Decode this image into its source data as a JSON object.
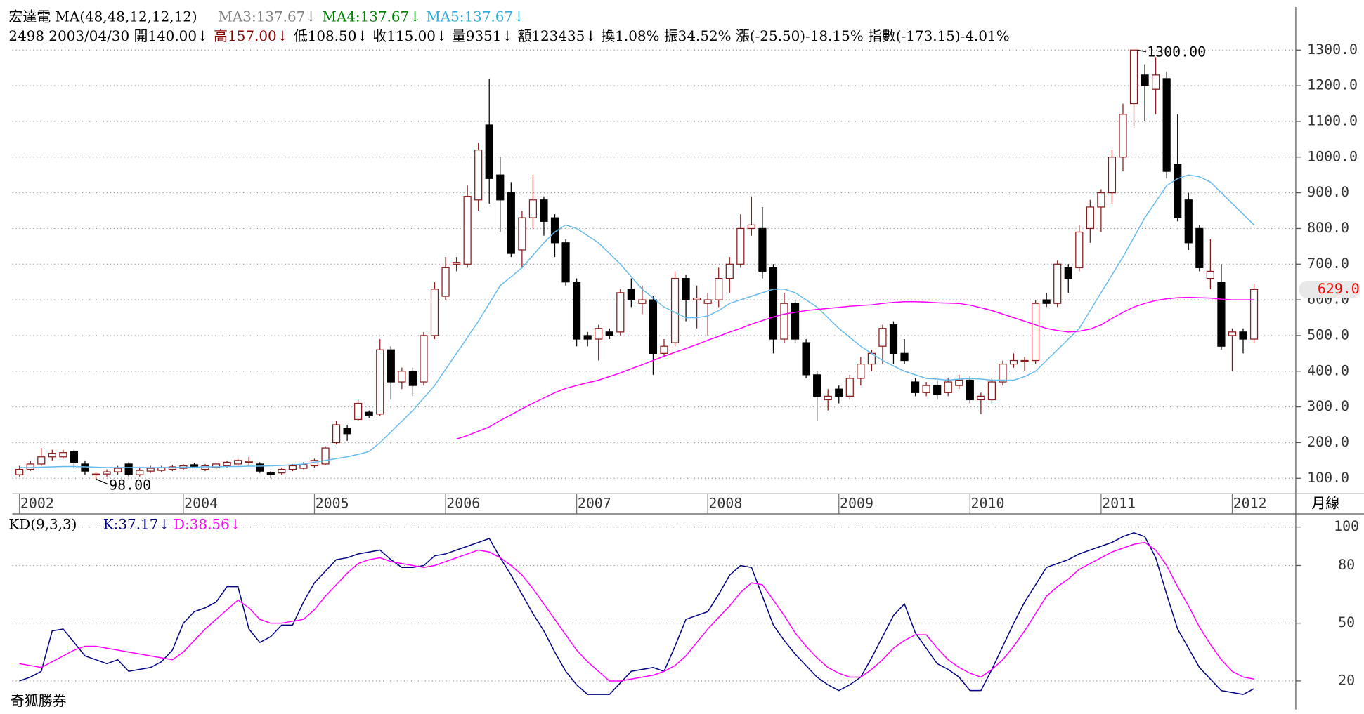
{
  "header": {
    "line1": [
      {
        "text": "宏達電 MA(48,48,12,12,12)",
        "color": "#000000"
      },
      {
        "text": "MA3:137.67↓",
        "color": "#808080"
      },
      {
        "text": "MA4:137.67↓",
        "color": "#008000"
      },
      {
        "text": "MA5:137.67↓",
        "color": "#33aadd"
      }
    ],
    "line2": [
      {
        "text": "2498 2003/04/30 開140.00↓",
        "color": "#000000"
      },
      {
        "text": "高157.00↓",
        "color": "#8b0000"
      },
      {
        "text": "低108.50↓ 收115.00↓ 量9351↓ 額123435↓ 換1.08% 振34.52% 漲(-25.50)-18.15% 指數(-173.15)-4.01%",
        "color": "#000000"
      }
    ]
  },
  "chart_data": [
    {
      "type": "candlestick",
      "up_color": "#8b1a1a",
      "down_color": "#000000",
      "grid": true,
      "open": [
        110,
        125,
        140,
        160,
        160,
        175,
        140,
        110,
        112,
        118,
        140,
        110,
        120,
        122,
        125,
        128,
        138,
        125,
        130,
        135,
        140,
        145,
        140,
        115,
        115,
        125,
        128,
        135,
        140,
        200,
        240,
        265,
        285,
        280,
        460,
        370,
        400,
        370,
        500,
        610,
        700,
        700,
        880,
        1090,
        950,
        900,
        740,
        830,
        880,
        830,
        760,
        650,
        500,
        490,
        510,
        510,
        630,
        590,
        600,
        450,
        480,
        660,
        600,
        590,
        600,
        660,
        700,
        800,
        800,
        690,
        490,
        590,
        480,
        390,
        320,
        350,
        330,
        380,
        420,
        470,
        530,
        450,
        370,
        340,
        360,
        340,
        360,
        375,
        320,
        320,
        370,
        420,
        430,
        430,
        600,
        590,
        690,
        690,
        800,
        860,
        900,
        1000,
        1150,
        1230,
        1190,
        1220,
        980,
        880,
        800,
        660,
        650,
        500,
        510,
        490
      ],
      "high": [
        135,
        150,
        185,
        180,
        180,
        180,
        150,
        118,
        125,
        135,
        145,
        130,
        135,
        135,
        138,
        140,
        142,
        140,
        145,
        150,
        155,
        160,
        145,
        120,
        130,
        140,
        145,
        155,
        190,
        260,
        250,
        320,
        290,
        490,
        470,
        410,
        410,
        510,
        650,
        720,
        720,
        920,
        1040,
        1220,
        1000,
        930,
        850,
        950,
        890,
        840,
        770,
        660,
        510,
        530,
        520,
        630,
        660,
        640,
        610,
        490,
        680,
        670,
        640,
        620,
        690,
        720,
        840,
        890,
        860,
        700,
        620,
        600,
        490,
        400,
        350,
        360,
        390,
        440,
        460,
        530,
        540,
        490,
        380,
        370,
        375,
        380,
        390,
        385,
        340,
        380,
        430,
        450,
        440,
        600,
        620,
        710,
        700,
        810,
        880,
        910,
        1020,
        1150,
        1300,
        1260,
        1280,
        1240,
        1120,
        900,
        810,
        770,
        700,
        520,
        520,
        645
      ],
      "low": [
        105,
        120,
        135,
        150,
        155,
        130,
        110,
        98,
        105,
        110,
        105,
        105,
        115,
        118,
        120,
        122,
        128,
        120,
        125,
        130,
        135,
        135,
        115,
        100,
        110,
        120,
        125,
        130,
        138,
        195,
        205,
        260,
        270,
        275,
        320,
        350,
        330,
        360,
        490,
        600,
        680,
        690,
        850,
        870,
        790,
        720,
        690,
        800,
        780,
        720,
        640,
        470,
        470,
        430,
        490,
        500,
        580,
        560,
        390,
        440,
        470,
        540,
        520,
        500,
        580,
        620,
        690,
        780,
        660,
        450,
        480,
        480,
        380,
        260,
        290,
        310,
        320,
        360,
        400,
        420,
        420,
        420,
        330,
        330,
        320,
        330,
        350,
        310,
        280,
        310,
        360,
        410,
        400,
        420,
        580,
        580,
        620,
        680,
        760,
        790,
        870,
        960,
        1080,
        1100,
        1120,
        940,
        820,
        740,
        680,
        630,
        460,
        400,
        450,
        480
      ],
      "close": [
        125,
        140,
        160,
        170,
        172,
        145,
        120,
        112,
        118,
        128,
        110,
        122,
        128,
        130,
        132,
        135,
        132,
        135,
        140,
        145,
        150,
        148,
        120,
        110,
        125,
        135,
        138,
        150,
        185,
        250,
        225,
        310,
        275,
        460,
        370,
        400,
        360,
        500,
        630,
        690,
        705,
        890,
        1020,
        940,
        880,
        730,
        830,
        880,
        820,
        760,
        650,
        490,
        490,
        520,
        500,
        620,
        600,
        600,
        450,
        470,
        660,
        600,
        605,
        600,
        660,
        700,
        800,
        810,
        680,
        490,
        590,
        490,
        390,
        330,
        330,
        330,
        380,
        420,
        450,
        520,
        450,
        430,
        340,
        360,
        335,
        370,
        375,
        320,
        330,
        370,
        420,
        430,
        430,
        590,
        590,
        700,
        660,
        790,
        860,
        900,
        1000,
        1120,
        1300,
        1200,
        1230,
        960,
        830,
        760,
        690,
        680,
        470,
        510,
        490,
        629
      ],
      "series": [
        {
          "color": "#66bbee",
          "values": [
            130,
            130,
            131,
            132,
            133,
            133,
            132,
            131,
            130,
            130,
            130,
            130,
            130,
            130,
            130,
            131,
            131,
            132,
            132,
            133,
            133,
            134,
            134,
            135,
            136,
            138,
            140,
            145,
            150,
            155,
            160,
            167,
            175,
            200,
            230,
            260,
            290,
            325,
            360,
            405,
            450,
            495,
            540,
            590,
            640,
            665,
            690,
            725,
            760,
            790,
            810,
            800,
            780,
            760,
            730,
            700,
            665,
            630,
            605,
            580,
            565,
            550,
            550,
            555,
            570,
            590,
            600,
            610,
            620,
            630,
            630,
            620,
            600,
            580,
            550,
            520,
            495,
            470,
            450,
            430,
            415,
            400,
            390,
            380,
            378,
            375,
            378,
            380,
            378,
            375,
            375,
            375,
            385,
            400,
            430,
            460,
            490,
            520,
            570,
            620,
            670,
            720,
            775,
            830,
            875,
            920,
            940,
            950,
            945,
            930,
            900,
            870,
            840,
            810
          ]
        },
        {
          "color": "#ff00ff",
          "values": [
            null,
            null,
            null,
            null,
            null,
            null,
            null,
            null,
            null,
            null,
            null,
            null,
            null,
            null,
            null,
            null,
            null,
            null,
            null,
            null,
            null,
            null,
            null,
            null,
            null,
            null,
            null,
            null,
            null,
            null,
            null,
            null,
            null,
            null,
            null,
            null,
            null,
            null,
            null,
            null,
            210,
            220,
            232,
            244,
            262,
            278,
            295,
            310,
            325,
            340,
            352,
            360,
            368,
            375,
            385,
            395,
            407,
            418,
            430,
            442,
            453,
            464,
            475,
            487,
            498,
            510,
            520,
            532,
            542,
            552,
            560,
            565,
            570,
            573,
            576,
            579,
            582,
            584,
            586,
            590,
            593,
            595,
            595,
            594,
            592,
            591,
            590,
            585,
            578,
            570,
            560,
            550,
            540,
            530,
            520,
            514,
            510,
            512,
            518,
            530,
            548,
            565,
            580,
            590,
            598,
            603,
            606,
            607,
            606,
            605,
            602,
            600,
            600,
            600
          ]
        }
      ],
      "ylim": [
        64,
        1330
      ],
      "yticks": [
        {
          "value": 100,
          "label": "100.0"
        },
        {
          "value": 200,
          "label": "200.0"
        },
        {
          "value": 300,
          "label": "300.0"
        },
        {
          "value": 400,
          "label": "400.0"
        },
        {
          "value": 500,
          "label": "500.0"
        },
        {
          "value": 600,
          "label": "600.0"
        },
        {
          "value": 700,
          "label": "700.0"
        },
        {
          "value": 800,
          "label": "800.0"
        },
        {
          "value": 900,
          "label": "900.0"
        },
        {
          "value": 1000,
          "label": "1000.0"
        },
        {
          "value": 1100,
          "label": "1100.0"
        },
        {
          "value": 1200,
          "label": "1200.0"
        },
        {
          "value": 1300,
          "label": "1300.0"
        }
      ],
      "xlim": [
        -0.5,
        116.5
      ],
      "xticks": [
        {
          "value": 0,
          "label": "2002"
        },
        {
          "value": 15,
          "label": "2004"
        },
        {
          "value": 27,
          "label": "2005"
        },
        {
          "value": 39,
          "label": "2006"
        },
        {
          "value": 51,
          "label": "2007"
        },
        {
          "value": 63,
          "label": "2008"
        },
        {
          "value": 75,
          "label": "2009"
        },
        {
          "value": 87,
          "label": "2010"
        },
        {
          "value": 99,
          "label": "2011"
        },
        {
          "value": 111,
          "label": "2012"
        }
      ],
      "axis_label": "月線",
      "max_label": "1300.00",
      "min_label": "98.00",
      "last_label": "629.0"
    },
    {
      "type": "line",
      "title": "KD(9,3,3)",
      "grid": true,
      "ylim": [
        6,
        105
      ],
      "yticks": [
        20,
        50,
        80,
        100
      ],
      "xlim": [
        -0.5,
        116.5
      ],
      "series": [
        {
          "name": "K:37.17↓",
          "color": "#000080",
          "values": [
            20,
            22,
            25,
            46,
            47,
            40,
            33,
            31,
            29,
            31,
            25,
            26,
            27,
            30,
            36,
            50,
            56,
            58,
            61,
            69,
            69,
            47,
            40,
            43,
            49,
            49,
            61,
            71,
            77,
            83,
            84,
            86,
            87,
            88,
            83,
            79,
            79,
            80,
            85,
            86,
            88,
            90,
            92,
            94,
            84,
            75,
            65,
            55,
            46,
            35,
            25,
            18,
            13,
            13,
            13,
            19,
            25,
            26,
            27,
            25,
            38,
            52,
            54,
            56,
            65,
            75,
            80,
            79,
            64,
            49,
            41,
            34,
            28,
            22,
            18,
            15,
            18,
            22,
            32,
            43,
            54,
            60,
            45,
            37,
            29,
            26,
            22,
            15,
            15,
            26,
            38,
            50,
            61,
            70,
            79,
            81,
            83,
            86,
            88,
            90,
            92,
            95,
            97,
            95,
            84,
            65,
            47,
            37,
            27,
            21,
            15,
            14,
            13,
            16
          ]
        },
        {
          "name": "D:38.56↓",
          "color": "#ff00ff",
          "values": [
            29,
            28,
            27,
            30,
            33,
            36,
            38,
            38,
            37,
            36,
            35,
            34,
            33,
            32,
            31,
            35,
            41,
            47,
            52,
            57,
            62,
            58,
            52,
            50,
            50,
            51,
            52,
            57,
            64,
            70,
            76,
            81,
            83,
            84,
            82,
            81,
            80,
            79,
            80,
            82,
            84,
            86,
            88,
            87,
            84,
            80,
            75,
            68,
            60,
            52,
            44,
            36,
            30,
            25,
            20,
            20,
            21,
            22,
            23,
            25,
            28,
            33,
            40,
            47,
            53,
            59,
            66,
            71,
            70,
            62,
            54,
            45,
            38,
            32,
            27,
            24,
            22,
            22,
            26,
            31,
            37,
            41,
            44,
            44,
            37,
            31,
            27,
            24,
            22,
            26,
            31,
            38,
            46,
            55,
            64,
            69,
            73,
            78,
            81,
            84,
            87,
            89,
            91,
            92,
            88,
            80,
            69,
            59,
            48,
            39,
            31,
            25,
            22,
            21
          ]
        }
      ]
    }
  ],
  "footer": "奇狐勝券"
}
